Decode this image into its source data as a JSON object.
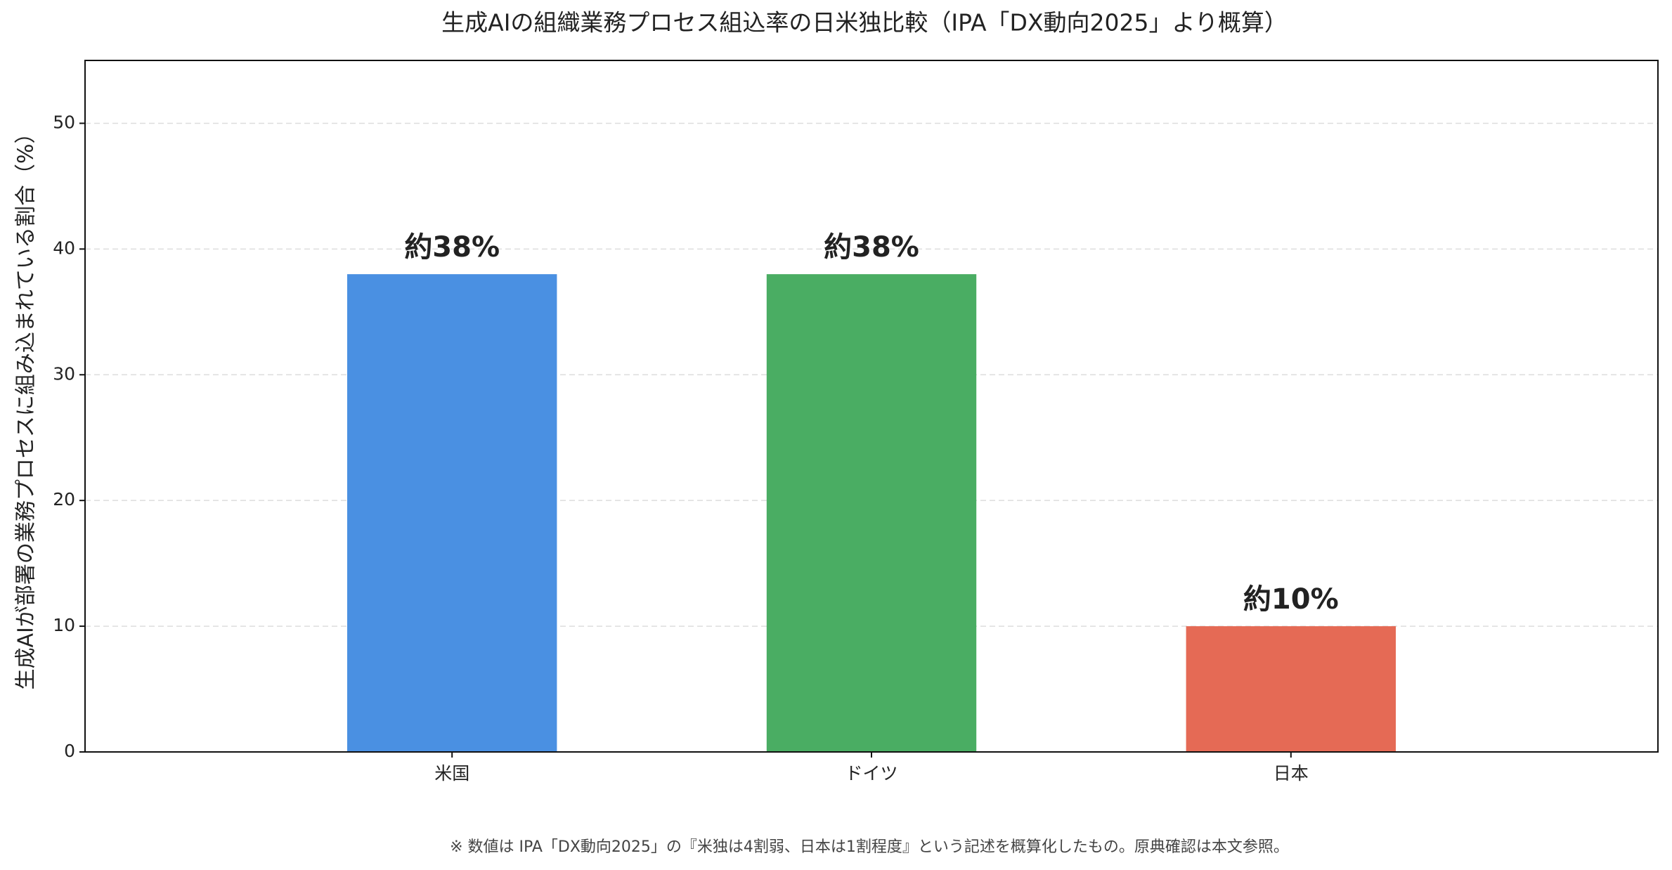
{
  "chart_data": {
    "type": "bar",
    "title": "生成AIの組織業務プロセス組込率の日米独比較（IPA「DX動向2025」より概算）",
    "y_label": "生成AIが部署の業務プロセスに組み込まれている割合（%）",
    "categories": [
      "米国",
      "ドイツ",
      "日本"
    ],
    "values": [
      38,
      38,
      10
    ],
    "value_labels": [
      "約38%",
      "約38%",
      "約10%"
    ],
    "colors": [
      "#4a90e2",
      "#4aad63",
      "#e56a55"
    ],
    "ylim": [
      0,
      55
    ],
    "yticks": [
      0,
      10,
      20,
      30,
      40,
      50
    ],
    "grid": true,
    "note": "※ 数値は IPA「DX動向2025」の『米独は4割弱、日本は1割程度』という記述を概算化したもの。原典確認は本文参照。"
  }
}
